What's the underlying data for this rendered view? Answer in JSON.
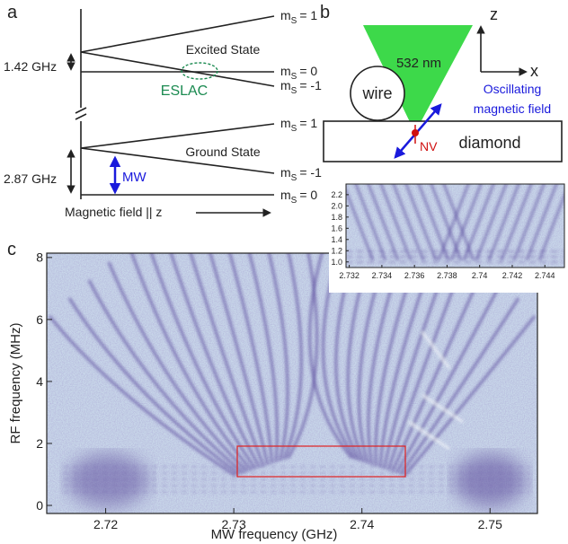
{
  "panel_a": {
    "label": "a",
    "excited_state": "Excited State",
    "ground_state": "Ground State",
    "eslac": "ESLAC",
    "excited_splitting": "1.42 GHz",
    "ground_splitting": "2.87 GHz",
    "mw": "MW",
    "field_axis": "Magnetic field || z",
    "sublevel_symbol": "m",
    "sublevel_sub": "S",
    "excited_levels": [
      "= 1",
      "= 0",
      "= -1"
    ],
    "ground_levels": [
      "= 1",
      "= -1",
      "= 0"
    ]
  },
  "panel_b": {
    "label": "b",
    "laser": "532 nm",
    "wire": "wire",
    "diamond": "diamond",
    "nv": "NV",
    "field": [
      "Oscillating",
      "magnetic field"
    ],
    "axis_z": "z",
    "axis_x": "x"
  },
  "panel_c": {
    "label": "c",
    "x_label": "MW frequency (GHz)",
    "y_label": "RF frequency (MHz)",
    "xlim": [
      2.7154,
      2.7537
    ],
    "ylim": [
      -0.26,
      8.14
    ],
    "xticks": [
      2.72,
      2.73,
      2.74,
      2.75
    ],
    "yticks": [
      0,
      2,
      4,
      6,
      8
    ]
  },
  "inset": {
    "xlim": [
      2.7318,
      2.7452
    ],
    "ylim": [
      0.9,
      2.39
    ],
    "xticks": [
      2.732,
      2.734,
      2.736,
      2.738,
      2.74,
      2.742,
      2.744
    ],
    "yticks": [
      {
        "value": 1.0,
        "label": "1.0"
      },
      1.2,
      1.4,
      1.6,
      1.8,
      {
        "value": 2.0,
        "label": "2.0"
      },
      2.2
    ]
  }
}
